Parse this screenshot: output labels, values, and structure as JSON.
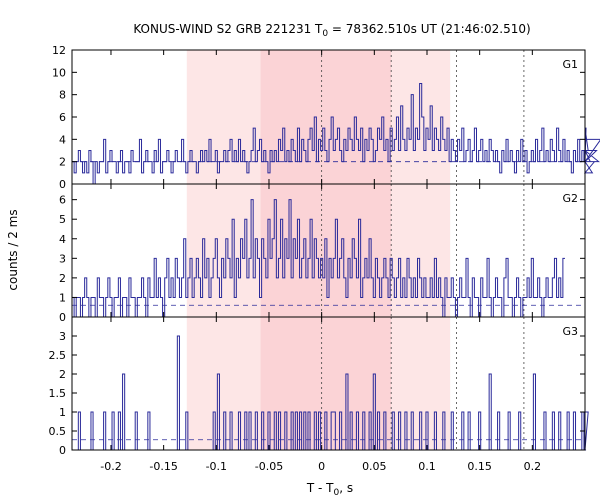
{
  "chart_data": {
    "type": "line",
    "title": "KONUS-WIND S2 GRB 221231 T",
    "title_sub": "0",
    "title_rest": " = 78362.510s UT (21:46:02.510)",
    "xlabel": "T - T",
    "xlabel_sub": "0",
    "xlabel_rest": ", s",
    "ylabel": "counts / 2 ms",
    "xlim": [
      -0.237,
      0.25
    ],
    "x_ticks": [
      -0.2,
      -0.15,
      -0.1,
      -0.05,
      0,
      0.05,
      0.1,
      0.15,
      0.2
    ],
    "x_tick_labels": [
      "-0.2",
      "-0.15",
      "-0.1",
      "-0.05",
      "0",
      "0.05",
      "0.1",
      "0.15",
      "0.2"
    ],
    "shaded_intervals": [
      {
        "x0": -0.128,
        "x1": 0.122,
        "color": "#fde6e6"
      },
      {
        "x0": -0.058,
        "x1": 0.066,
        "color": "#fbd3d6"
      }
    ],
    "vertical_markers": [
      0,
      0.066,
      0.128,
      0.192
    ],
    "series_color": "#2a2a9a",
    "step": 0.002,
    "panels": [
      {
        "name": "G1",
        "ylim": [
          0,
          12
        ],
        "y_ticks": [
          0,
          2,
          4,
          6,
          8,
          10,
          12
        ],
        "y_tick_labels": [
          "0",
          "2",
          "4",
          "6",
          "8",
          "10",
          "12"
        ],
        "background": 2.0,
        "values": [
          2,
          1,
          2,
          3,
          2,
          1,
          2,
          1,
          3,
          2,
          0,
          2,
          1,
          2,
          2,
          4,
          1,
          2,
          3,
          2,
          2,
          1,
          2,
          3,
          1,
          2,
          2,
          1,
          3,
          2,
          2,
          2,
          4,
          1,
          2,
          3,
          2,
          2,
          1,
          3,
          2,
          4,
          1,
          2,
          2,
          3,
          2,
          1,
          2,
          3,
          2,
          2,
          4,
          2,
          1,
          2,
          3,
          2,
          2,
          1,
          2,
          3,
          2,
          3,
          2,
          4,
          2,
          2,
          3,
          1,
          2,
          2,
          3,
          2,
          3,
          4,
          2,
          3,
          2,
          4,
          2,
          3,
          2,
          1,
          2,
          3,
          5,
          2,
          3,
          4,
          2,
          3,
          2,
          1,
          3,
          2,
          3,
          2,
          4,
          3,
          5,
          2,
          3,
          2,
          4,
          3,
          2,
          5,
          2,
          4,
          3,
          2,
          4,
          5,
          3,
          6,
          2,
          4,
          3,
          5,
          3,
          2,
          4,
          6,
          3,
          4,
          5,
          3,
          2,
          4,
          3,
          5,
          4,
          3,
          6,
          4,
          3,
          5,
          2,
          4,
          3,
          5,
          4,
          2,
          3,
          5,
          4,
          6,
          3,
          4,
          2,
          5,
          3,
          4,
          6,
          3,
          7,
          4,
          3,
          5,
          4,
          8,
          3,
          5,
          4,
          9,
          6,
          3,
          5,
          4,
          7,
          3,
          5,
          4,
          3,
          6,
          4,
          3,
          5,
          2,
          4,
          3,
          2,
          4,
          3,
          5,
          2,
          3,
          4,
          2,
          3,
          5,
          2,
          3,
          4,
          2,
          3,
          2,
          4,
          3,
          2,
          3,
          2,
          1,
          3,
          2,
          4,
          2,
          3,
          2,
          1,
          3,
          2,
          4,
          2,
          3,
          1,
          2,
          3,
          2,
          4,
          2,
          3,
          5,
          2,
          3,
          2,
          4,
          3,
          2,
          5,
          3,
          2,
          4,
          2,
          3,
          2,
          1,
          3,
          2,
          4,
          2,
          3,
          2,
          5,
          3,
          2,
          1,
          2,
          3,
          2,
          4
        ]
      },
      {
        "name": "G2",
        "ylim": [
          0,
          6.8
        ],
        "y_ticks": [
          0,
          1,
          2,
          3,
          4,
          5,
          6
        ],
        "y_tick_labels": [
          "0",
          "1",
          "2",
          "3",
          "4",
          "5",
          "6"
        ],
        "background": 0.6,
        "values": [
          1,
          0,
          1,
          1,
          0,
          1,
          2,
          1,
          0,
          1,
          1,
          0,
          2,
          1,
          1,
          0,
          1,
          2,
          1,
          0,
          1,
          1,
          2,
          0,
          1,
          1,
          0,
          2,
          1,
          1,
          0,
          1,
          1,
          2,
          1,
          0,
          2,
          1,
          1,
          3,
          1,
          2,
          1,
          0,
          2,
          3,
          1,
          2,
          1,
          3,
          2,
          1,
          2,
          4,
          1,
          2,
          3,
          1,
          2,
          3,
          2,
          1,
          4,
          2,
          3,
          1,
          2,
          3,
          4,
          2,
          1,
          3,
          2,
          4,
          3,
          2,
          5,
          1,
          3,
          2,
          4,
          3,
          5,
          2,
          3,
          6,
          2,
          4,
          3,
          1,
          4,
          3,
          2,
          5,
          3,
          4,
          6,
          2,
          3,
          5,
          2,
          4,
          3,
          6,
          2,
          4,
          3,
          5,
          2,
          3,
          4,
          2,
          3,
          5,
          2,
          4,
          3,
          2,
          3,
          2,
          4,
          1,
          3,
          2,
          3,
          5,
          2,
          3,
          4,
          2,
          1,
          3,
          2,
          4,
          3,
          2,
          5,
          1,
          2,
          3,
          2,
          4,
          2,
          1,
          3,
          2,
          1,
          2,
          3,
          2,
          1,
          3,
          2,
          1,
          2,
          3,
          1,
          2,
          1,
          3,
          2,
          1,
          2,
          1,
          3,
          2,
          1,
          2,
          1,
          1,
          2,
          1,
          3,
          1,
          2,
          1,
          0,
          2,
          1,
          1,
          2,
          1,
          0,
          1,
          2,
          1,
          1,
          3,
          1,
          0,
          2,
          1,
          1,
          0,
          2,
          1,
          1,
          3,
          1,
          0,
          1,
          2,
          1,
          1,
          0,
          2,
          3,
          1,
          1,
          0,
          1,
          2,
          1,
          0,
          1,
          1,
          2,
          1,
          3,
          1,
          1,
          2,
          1,
          0,
          1,
          2,
          1,
          1,
          2,
          3,
          1,
          2,
          1,
          3
        ]
      },
      {
        "name": "G3",
        "ylim": [
          0,
          3.5
        ],
        "y_ticks": [
          0,
          0.5,
          1,
          1.5,
          2,
          2.5,
          3
        ],
        "y_tick_labels": [
          "0",
          "0.5",
          "1",
          "1.5",
          "2",
          "2.5",
          "3"
        ],
        "background": 0.27,
        "values": [
          0,
          0,
          0,
          1,
          0,
          0,
          0,
          0,
          0,
          1,
          0,
          0,
          0,
          0,
          0,
          1,
          0,
          0,
          0,
          1,
          0,
          0,
          1,
          0,
          2,
          0,
          0,
          0,
          0,
          0,
          1,
          0,
          0,
          0,
          0,
          0,
          1,
          0,
          0,
          0,
          0,
          0,
          0,
          0,
          0,
          0,
          0,
          0,
          0,
          0,
          3,
          0,
          0,
          0,
          1,
          0,
          0,
          0,
          0,
          0,
          0,
          0,
          0,
          0,
          0,
          0,
          0,
          1,
          0,
          2,
          0,
          0,
          1,
          0,
          0,
          1,
          0,
          0,
          0,
          1,
          0,
          0,
          1,
          0,
          1,
          0,
          0,
          1,
          0,
          0,
          1,
          0,
          0,
          1,
          0,
          0,
          1,
          0,
          1,
          0,
          0,
          1,
          0,
          0,
          1,
          0,
          1,
          0,
          1,
          0,
          1,
          0,
          1,
          0,
          0,
          1,
          0,
          1,
          0,
          0,
          1,
          0,
          0,
          1,
          1,
          0,
          0,
          1,
          0,
          0,
          2,
          0,
          1,
          0,
          0,
          1,
          0,
          0,
          1,
          0,
          0,
          1,
          0,
          2,
          0,
          1,
          0,
          0,
          1,
          0,
          0,
          0,
          1,
          0,
          0,
          1,
          0,
          0,
          1,
          0,
          0,
          1,
          0,
          0,
          0,
          1,
          0,
          0,
          1,
          0,
          0,
          0,
          1,
          0,
          0,
          0,
          1,
          0,
          0,
          0,
          1,
          0,
          0,
          0,
          0,
          1,
          0,
          0,
          1,
          0,
          0,
          0,
          0,
          1,
          0,
          0,
          0,
          0,
          2,
          0,
          0,
          0,
          1,
          0,
          0,
          0,
          0,
          1,
          0,
          0,
          0,
          0,
          1,
          0,
          0,
          0,
          0,
          0,
          0,
          2,
          0,
          0,
          0,
          0,
          1,
          0,
          0,
          0,
          1,
          0,
          0,
          1,
          0,
          0,
          0,
          1,
          0,
          0,
          1,
          0,
          0,
          0,
          1,
          0,
          0,
          1
        ]
      }
    ]
  }
}
